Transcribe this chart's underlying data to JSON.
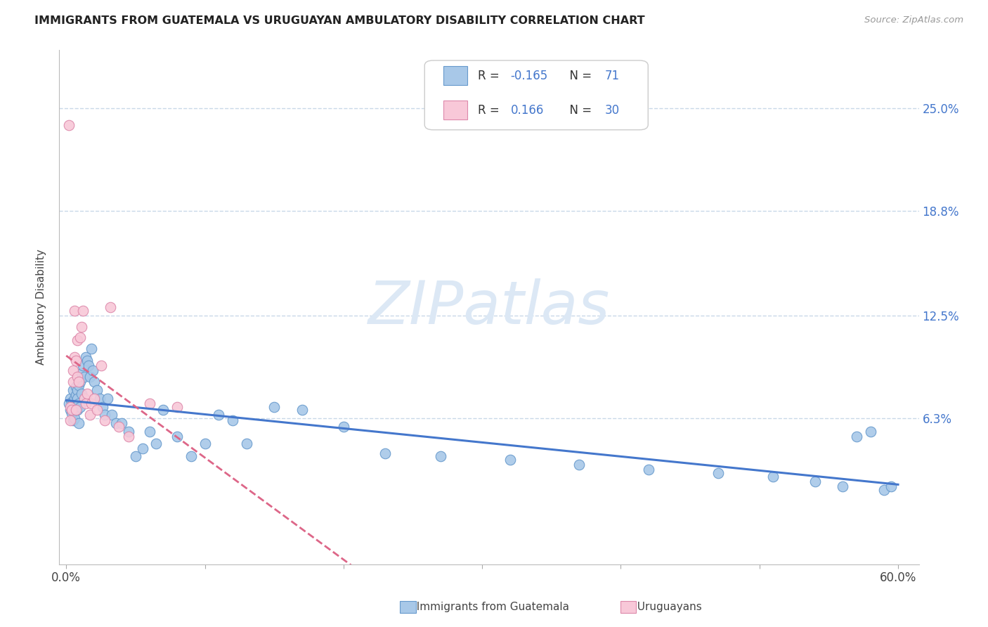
{
  "title": "IMMIGRANTS FROM GUATEMALA VS URUGUAYAN AMBULATORY DISABILITY CORRELATION CHART",
  "source": "Source: ZipAtlas.com",
  "ylabel": "Ambulatory Disability",
  "ytick_vals": [
    0.063,
    0.125,
    0.188,
    0.25
  ],
  "ytick_labels": [
    "6.3%",
    "12.5%",
    "18.8%",
    "25.0%"
  ],
  "xlim": [
    -0.005,
    0.615
  ],
  "ylim": [
    -0.025,
    0.285
  ],
  "series1_color": "#a8c8e8",
  "series1_edge": "#6699cc",
  "series2_color": "#f8c8d8",
  "series2_edge": "#dd88aa",
  "trendline1_color": "#4477cc",
  "trendline2_color": "#dd6688",
  "background_color": "#ffffff",
  "grid_color": "#c8d8e8",
  "watermark": "ZIPatlas",
  "watermark_color": "#dce8f5",
  "legend_R1": "-0.165",
  "legend_N1": "71",
  "legend_R2": "0.166",
  "legend_N2": "30",
  "legend_color_R": "#4477cc",
  "legend_color_N": "#222222",
  "bottom_label1": "Immigrants from Guatemala",
  "bottom_label2": "Uruguayans",
  "bottom_label1_color": "#88bbdd",
  "bottom_label2_color": "#ee88aa",
  "scatter1_x": [
    0.002,
    0.003,
    0.003,
    0.004,
    0.004,
    0.004,
    0.005,
    0.005,
    0.005,
    0.005,
    0.006,
    0.006,
    0.006,
    0.007,
    0.007,
    0.007,
    0.008,
    0.008,
    0.008,
    0.009,
    0.009,
    0.009,
    0.01,
    0.01,
    0.011,
    0.011,
    0.012,
    0.013,
    0.014,
    0.015,
    0.016,
    0.017,
    0.018,
    0.019,
    0.02,
    0.022,
    0.024,
    0.026,
    0.028,
    0.03,
    0.033,
    0.036,
    0.04,
    0.045,
    0.05,
    0.055,
    0.06,
    0.065,
    0.07,
    0.08,
    0.09,
    0.1,
    0.11,
    0.12,
    0.13,
    0.15,
    0.17,
    0.2,
    0.23,
    0.27,
    0.32,
    0.37,
    0.42,
    0.47,
    0.51,
    0.54,
    0.56,
    0.57,
    0.58,
    0.59,
    0.595
  ],
  "scatter1_y": [
    0.072,
    0.075,
    0.068,
    0.073,
    0.066,
    0.07,
    0.08,
    0.073,
    0.068,
    0.062,
    0.075,
    0.07,
    0.063,
    0.082,
    0.068,
    0.077,
    0.08,
    0.075,
    0.068,
    0.083,
    0.072,
    0.06,
    0.085,
    0.07,
    0.09,
    0.078,
    0.095,
    0.088,
    0.1,
    0.098,
    0.095,
    0.088,
    0.105,
    0.092,
    0.085,
    0.08,
    0.075,
    0.07,
    0.065,
    0.075,
    0.065,
    0.06,
    0.06,
    0.055,
    0.04,
    0.045,
    0.055,
    0.048,
    0.068,
    0.052,
    0.04,
    0.048,
    0.065,
    0.062,
    0.048,
    0.07,
    0.068,
    0.058,
    0.042,
    0.04,
    0.038,
    0.035,
    0.032,
    0.03,
    0.028,
    0.025,
    0.022,
    0.052,
    0.055,
    0.02,
    0.022
  ],
  "scatter2_x": [
    0.002,
    0.003,
    0.003,
    0.004,
    0.005,
    0.005,
    0.006,
    0.006,
    0.007,
    0.007,
    0.008,
    0.008,
    0.009,
    0.01,
    0.011,
    0.012,
    0.013,
    0.014,
    0.015,
    0.017,
    0.018,
    0.02,
    0.022,
    0.025,
    0.028,
    0.032,
    0.038,
    0.045,
    0.06,
    0.08
  ],
  "scatter2_y": [
    0.24,
    0.07,
    0.062,
    0.068,
    0.092,
    0.085,
    0.128,
    0.1,
    0.098,
    0.068,
    0.11,
    0.088,
    0.085,
    0.112,
    0.118,
    0.128,
    0.075,
    0.072,
    0.078,
    0.065,
    0.072,
    0.075,
    0.068,
    0.095,
    0.062,
    0.13,
    0.058,
    0.052,
    0.072,
    0.07
  ]
}
